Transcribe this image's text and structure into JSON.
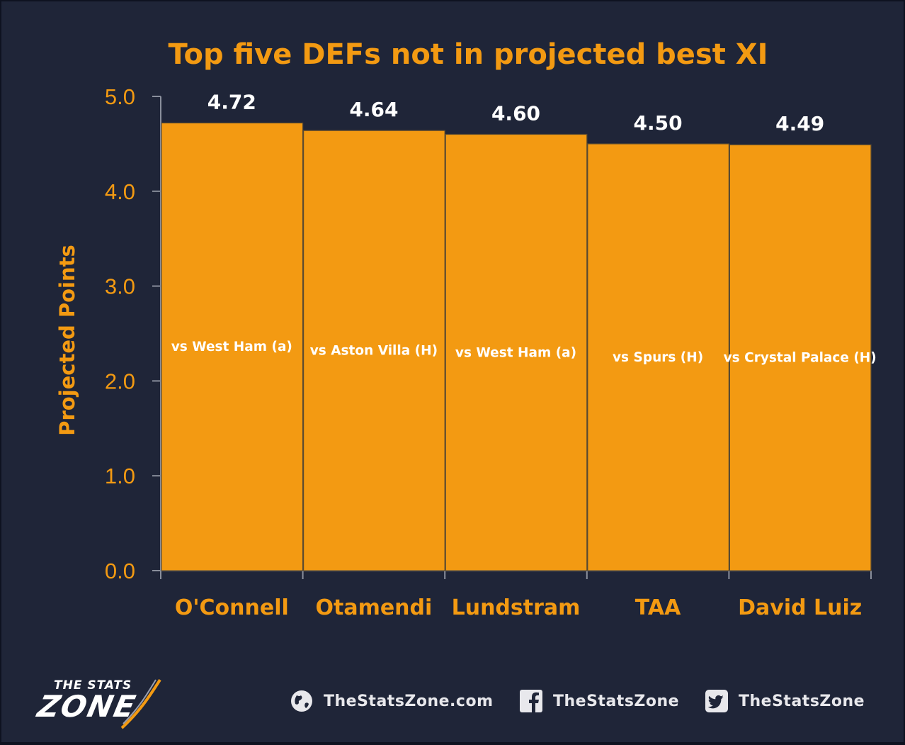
{
  "colors": {
    "background": "#1f2538",
    "accent": "#f39a12",
    "bar": "#f39a12",
    "bar_edge": "#5a4a30",
    "label": "#ffffff"
  },
  "chart_data": {
    "type": "bar",
    "title": "Top five DEFs not in projected best XI",
    "xlabel": "",
    "ylabel": "Projected Points",
    "ylim": [
      0,
      5
    ],
    "yticks": [
      "0.0",
      "1.0",
      "2.0",
      "3.0",
      "4.0",
      "5.0"
    ],
    "categories": [
      "O'Connell",
      "Otamendi",
      "Lundstram",
      "TAA",
      "David Luiz"
    ],
    "values": [
      4.72,
      4.64,
      4.6,
      4.5,
      4.49
    ],
    "value_labels": [
      "4.72",
      "4.64",
      "4.60",
      "4.50",
      "4.49"
    ],
    "fixtures": [
      "vs West Ham (a)",
      "vs Aston Villa (H)",
      "vs West Ham (a)",
      "vs Spurs (H)",
      "vs Crystal Palace (H)"
    ],
    "grid": false,
    "legend": "none"
  },
  "footer": {
    "logo_top": "THE STATS",
    "logo_main": "ZONE",
    "logo_icon": "stats-zone-logo",
    "social": [
      {
        "icon": "globe-icon",
        "text": "TheStatsZone.com"
      },
      {
        "icon": "facebook-icon",
        "text": "TheStatsZone"
      },
      {
        "icon": "twitter-icon",
        "text": "TheStatsZone"
      }
    ]
  }
}
